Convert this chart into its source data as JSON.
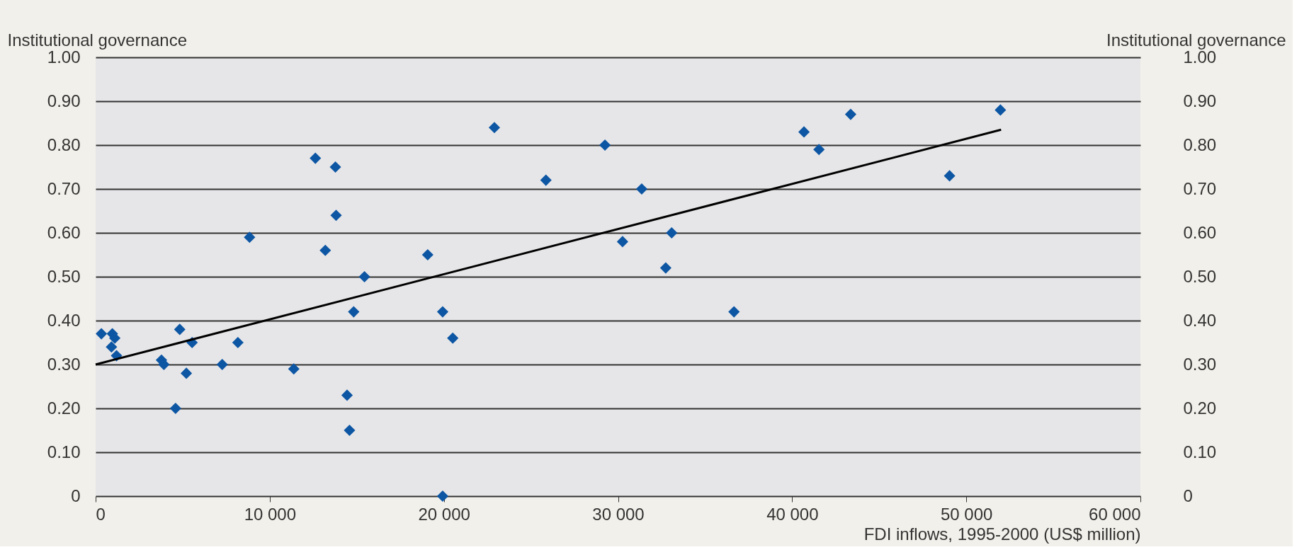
{
  "chart_data": {
    "type": "scatter",
    "xlabel": "FDI inflows, 1995-2000 (US$ million)",
    "ylabel": "Institutional governance",
    "y2label": "Institutional governance",
    "xlim": [
      0,
      60000
    ],
    "xticks": [
      {
        "value": 0,
        "label": "0"
      },
      {
        "value": 10000,
        "label": "10 000"
      },
      {
        "value": 20000,
        "label": "20 000"
      },
      {
        "value": 30000,
        "label": "30 000"
      },
      {
        "value": 40000,
        "label": "40 000"
      },
      {
        "value": 50000,
        "label": "50 000"
      },
      {
        "value": 60000,
        "label": "60 000"
      }
    ],
    "ylim": [
      0,
      1
    ],
    "yticks": [
      0,
      {
        "value": 0.1,
        "label": "0.10"
      },
      {
        "value": 0.2,
        "label": "0.20"
      },
      {
        "value": 0.3,
        "label": "0.30"
      },
      {
        "value": 0.4,
        "label": "0.40"
      },
      {
        "value": 0.5,
        "label": "0.50"
      },
      {
        "value": 0.6,
        "label": "0.60"
      },
      {
        "value": 0.7,
        "label": "0.70"
      },
      {
        "value": 0.8,
        "label": "0.80"
      },
      {
        "value": 0.9,
        "label": "0.90"
      },
      {
        "value": 1,
        "label": "1.00"
      }
    ],
    "y2lim": [
      0,
      1
    ],
    "y2ticks": [
      0,
      {
        "value": 0.1,
        "label": "0.10"
      },
      {
        "value": 0.2,
        "label": "0.20"
      },
      {
        "value": 0.3,
        "label": "0.30"
      },
      {
        "value": 0.4,
        "label": "0.40"
      },
      {
        "value": 0.5,
        "label": "0.50"
      },
      {
        "value": 0.6,
        "label": "0.60"
      },
      {
        "value": 0.7,
        "label": "0.70"
      },
      {
        "value": 0.8,
        "label": "0.80"
      },
      {
        "value": 0.9,
        "label": "0.90"
      },
      {
        "value": 1,
        "label": "1.00"
      }
    ],
    "grid": "y",
    "marker": "diamond",
    "series": [
      {
        "color": "#0d56a3",
        "x": [
          330,
          960,
          1100,
          910,
          1200,
          3780,
          3920,
          4830,
          5210,
          5540,
          4590,
          7270,
          8170,
          8840,
          11380,
          12620,
          13190,
          13770,
          13810,
          15440,
          14820,
          14440,
          14580,
          19070,
          19930,
          20510,
          19930,
          22900,
          25860,
          29250,
          30260,
          31360,
          33080,
          32740,
          36660,
          40680,
          41540,
          43360,
          49040,
          51960
        ],
        "values": [
          0.37,
          0.37,
          0.36,
          0.34,
          0.32,
          0.31,
          0.3,
          0.38,
          0.28,
          0.35,
          0.2,
          0.3,
          0.35,
          0.59,
          0.29,
          0.77,
          0.56,
          0.75,
          0.64,
          0.5,
          0.42,
          0.23,
          0.15,
          0.55,
          0.42,
          0.36,
          0.0,
          0.84,
          0.72,
          0.8,
          0.58,
          0.7,
          0.6,
          0.52,
          0.42,
          0.83,
          0.79,
          0.87,
          0.73,
          0.88
        ]
      },
      {
        "type": "line",
        "marker": "none",
        "color": "#000000",
        "x": [
          0,
          52000
        ],
        "values": [
          0.3,
          0.835
        ]
      }
    ]
  }
}
